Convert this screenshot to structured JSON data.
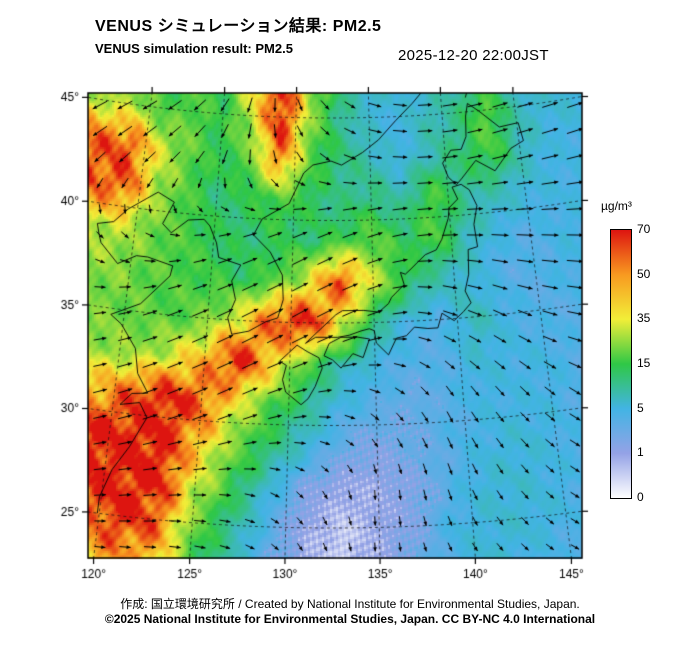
{
  "header": {
    "title_ja": "VENUS シミュレーション結果: PM2.5",
    "title_en": "VENUS simulation result: PM2.5",
    "timestamp": "2025-12-20 22:00JST"
  },
  "footer": {
    "credit": "作成: 国立環境研究所 / Created by National Institute for Environmental Studies, Japan.",
    "license": "©2025 National Institute for Environmental Studies, Japan. CC BY-NC 4.0 International"
  },
  "chart_data": {
    "type": "heatmap",
    "title": "VENUS シミュレーション結果: PM2.5",
    "subtitle": "VENUS simulation result: PM2.5",
    "variable": "PM2.5",
    "unit": "µg/m³",
    "valid_time": "2025-12-20 22:00JST",
    "axes": {
      "lon_ticks": [
        120,
        125,
        130,
        135,
        140,
        145
      ],
      "lon_tick_labels": [
        "120°",
        "125°",
        "130°",
        "135°",
        "140°",
        "145°"
      ],
      "lat_ticks": [
        25,
        30,
        35,
        40,
        45
      ],
      "lat_tick_labels": [
        "25°",
        "30°",
        "35°",
        "40°",
        "45°"
      ],
      "lon_range": [
        119.5,
        146.5
      ],
      "lat_range": [
        22.7,
        46.2
      ],
      "grid": "dashed"
    },
    "colorbar": {
      "unit": "µg/m³",
      "levels": [
        0,
        1,
        5,
        15,
        35,
        50,
        70
      ],
      "labels": [
        "0",
        "1",
        "5",
        "15",
        "35",
        "50",
        "70"
      ],
      "colors": [
        "#ffffff",
        "#94a2e6",
        "#42b4e4",
        "#2fc846",
        "#f2ee38",
        "#f89a20",
        "#dd1510"
      ],
      "orientation": "vertical",
      "position": "right"
    },
    "pm25_grid": {
      "lons": [
        119,
        121,
        123,
        125,
        127,
        129,
        131,
        133,
        135,
        137,
        139,
        141,
        143,
        145,
        147
      ],
      "lats": [
        47,
        45,
        43,
        41,
        39,
        37,
        35,
        33,
        31,
        29,
        27,
        25,
        23
      ],
      "values": [
        [
          22,
          14,
          18,
          14,
          40,
          70,
          28,
          12,
          8,
          6,
          6,
          8,
          10,
          6,
          6
        ],
        [
          28,
          16,
          20,
          14,
          30,
          70,
          24,
          10,
          6,
          5,
          8,
          10,
          20,
          8,
          6
        ],
        [
          60,
          32,
          20,
          14,
          20,
          55,
          18,
          12,
          8,
          5,
          8,
          12,
          18,
          8,
          5
        ],
        [
          60,
          28,
          18,
          12,
          14,
          18,
          14,
          10,
          12,
          8,
          18,
          10,
          8,
          6,
          5
        ],
        [
          30,
          22,
          18,
          14,
          12,
          14,
          12,
          16,
          20,
          14,
          18,
          8,
          5,
          4,
          5
        ],
        [
          24,
          20,
          18,
          16,
          14,
          18,
          32,
          62,
          30,
          14,
          8,
          6,
          4,
          4,
          5
        ],
        [
          22,
          20,
          18,
          22,
          35,
          62,
          70,
          35,
          10,
          5,
          4,
          8,
          5,
          4,
          4
        ],
        [
          26,
          25,
          32,
          45,
          70,
          40,
          18,
          8,
          5,
          4,
          4,
          6,
          5,
          5,
          4
        ],
        [
          45,
          60,
          70,
          60,
          35,
          18,
          10,
          5,
          4,
          3,
          4,
          5,
          5,
          5,
          4
        ],
        [
          70,
          70,
          70,
          45,
          22,
          12,
          6,
          3,
          2,
          3,
          4,
          5,
          6,
          5,
          4
        ],
        [
          70,
          70,
          70,
          32,
          15,
          6,
          2,
          1,
          1,
          2,
          4,
          6,
          6,
          5,
          4
        ],
        [
          55,
          70,
          60,
          22,
          10,
          4,
          1,
          0.5,
          1,
          2,
          5,
          6,
          6,
          5,
          4
        ],
        [
          40,
          50,
          45,
          16,
          8,
          3,
          1,
          0.5,
          1,
          3,
          5,
          6,
          5,
          4,
          4
        ]
      ]
    },
    "wind_grid": {
      "lons": [
        119,
        123,
        127,
        131,
        135,
        139,
        143,
        147
      ],
      "lats": [
        47,
        43,
        39,
        35,
        31,
        27,
        23
      ],
      "u": [
        [
          -6,
          -5,
          -2,
          2,
          4,
          5,
          6,
          6
        ],
        [
          -5,
          -4,
          0,
          3,
          5,
          6,
          6,
          7
        ],
        [
          2,
          3,
          5,
          6,
          6,
          6,
          7,
          7
        ],
        [
          4,
          6,
          7,
          7,
          6,
          5,
          5,
          6
        ],
        [
          5,
          6,
          6,
          5,
          3,
          2,
          3,
          4
        ],
        [
          4,
          5,
          4,
          2,
          0,
          1,
          2,
          3
        ],
        [
          3,
          4,
          3,
          1,
          0,
          1,
          2,
          2
        ]
      ],
      "v": [
        [
          -3,
          -4,
          -6,
          -4,
          -2,
          0,
          1,
          1
        ],
        [
          -5,
          -5,
          -6,
          -3,
          -1,
          0,
          1,
          1
        ],
        [
          -2,
          0,
          2,
          3,
          2,
          0,
          -1,
          -1
        ],
        [
          1,
          3,
          4,
          4,
          2,
          -2,
          -3,
          -2
        ],
        [
          2,
          3,
          3,
          1,
          -2,
          -4,
          -4,
          -3
        ],
        [
          1,
          1,
          0,
          -2,
          -3,
          -4,
          -3,
          -2
        ],
        [
          0,
          0,
          -1,
          -2,
          -2,
          -2,
          -2,
          -1
        ]
      ]
    },
    "coastlines": [
      [
        [
          130.4,
          31.2
        ],
        [
          129.8,
          31.6
        ],
        [
          129.6,
          32.2
        ],
        [
          129.8,
          32.9
        ],
        [
          129.4,
          33.1
        ],
        [
          129.9,
          33.5
        ],
        [
          130.4,
          33.9
        ],
        [
          131.0,
          33.6
        ],
        [
          131.7,
          33.3
        ],
        [
          131.9,
          32.8
        ],
        [
          131.5,
          31.9
        ],
        [
          131.1,
          31.3
        ],
        [
          130.7,
          31.0
        ],
        [
          130.4,
          31.2
        ]
      ],
      [
        [
          132.0,
          33.4
        ],
        [
          132.5,
          33.2
        ],
        [
          133.0,
          32.8
        ],
        [
          133.7,
          33.5
        ],
        [
          134.3,
          33.3
        ],
        [
          134.7,
          34.2
        ],
        [
          134.0,
          34.3
        ],
        [
          133.0,
          34.3
        ],
        [
          132.3,
          34.0
        ],
        [
          132.0,
          33.4
        ]
      ],
      [
        [
          130.9,
          34.0
        ],
        [
          131.5,
          34.3
        ],
        [
          132.2,
          34.3
        ],
        [
          132.8,
          34.3
        ],
        [
          133.5,
          34.4
        ],
        [
          134.2,
          34.6
        ],
        [
          134.7,
          34.7
        ],
        [
          135.0,
          34.6
        ],
        [
          135.1,
          34.0
        ],
        [
          135.8,
          33.4
        ],
        [
          136.3,
          34.2
        ],
        [
          136.9,
          34.3
        ],
        [
          137.4,
          34.7
        ],
        [
          138.2,
          34.6
        ],
        [
          138.8,
          34.6
        ],
        [
          139.1,
          35.3
        ],
        [
          139.8,
          34.9
        ],
        [
          140.4,
          35.3
        ],
        [
          140.9,
          35.7
        ],
        [
          140.6,
          36.3
        ],
        [
          140.9,
          37.1
        ],
        [
          141.0,
          38.3
        ],
        [
          141.6,
          38.4
        ],
        [
          141.5,
          39.5
        ],
        [
          141.8,
          40.4
        ],
        [
          141.4,
          41.2
        ],
        [
          140.9,
          41.5
        ],
        [
          140.3,
          41.4
        ],
        [
          140.6,
          40.8
        ],
        [
          140.0,
          40.4
        ],
        [
          139.9,
          39.9
        ],
        [
          139.4,
          38.9
        ],
        [
          139.0,
          38.4
        ],
        [
          138.3,
          38.2
        ],
        [
          137.3,
          37.5
        ],
        [
          137.0,
          37.3
        ],
        [
          136.7,
          37.4
        ],
        [
          136.9,
          36.8
        ],
        [
          136.1,
          36.2
        ],
        [
          135.9,
          35.9
        ],
        [
          135.3,
          35.5
        ],
        [
          134.4,
          35.6
        ],
        [
          133.1,
          35.6
        ],
        [
          132.7,
          35.4
        ],
        [
          131.4,
          34.4
        ],
        [
          130.9,
          34.0
        ]
      ],
      [
        [
          140.1,
          41.9
        ],
        [
          139.8,
          42.6
        ],
        [
          140.4,
          43.2
        ],
        [
          141.1,
          43.2
        ],
        [
          141.5,
          43.8
        ],
        [
          141.6,
          44.8
        ],
        [
          141.8,
          45.4
        ],
        [
          142.5,
          45.0
        ],
        [
          143.8,
          44.1
        ],
        [
          145.1,
          44.2
        ],
        [
          145.3,
          43.3
        ],
        [
          144.4,
          43.0
        ],
        [
          143.2,
          42.0
        ],
        [
          142.0,
          42.6
        ],
        [
          141.0,
          41.8
        ],
        [
          140.6,
          41.5
        ],
        [
          140.1,
          41.9
        ]
      ],
      [
        [
          124.3,
          39.8
        ],
        [
          124.7,
          39.5
        ],
        [
          125.2,
          38.7
        ],
        [
          125.4,
          38.0
        ],
        [
          126.8,
          37.7
        ],
        [
          126.3,
          36.9
        ],
        [
          126.6,
          36.0
        ],
        [
          126.2,
          35.1
        ],
        [
          126.5,
          34.3
        ],
        [
          127.5,
          34.5
        ],
        [
          128.5,
          35.0
        ],
        [
          129.2,
          35.2
        ],
        [
          129.5,
          36.1
        ],
        [
          129.4,
          37.3
        ],
        [
          128.6,
          38.4
        ],
        [
          127.5,
          39.2
        ],
        [
          128.0,
          40.0
        ],
        [
          129.7,
          40.8
        ],
        [
          130.6,
          42.3
        ]
      ],
      [
        [
          119.9,
          25.0
        ],
        [
          119.9,
          25.8
        ],
        [
          120.4,
          27.2
        ],
        [
          121.2,
          28.4
        ],
        [
          122.0,
          29.9
        ],
        [
          121.5,
          30.6
        ],
        [
          120.4,
          30.4
        ],
        [
          121.0,
          31.0
        ],
        [
          121.9,
          31.1
        ],
        [
          121.2,
          32.0
        ],
        [
          120.9,
          33.2
        ],
        [
          119.9,
          34.3
        ],
        [
          119.2,
          34.7
        ],
        [
          120.9,
          35.4
        ],
        [
          122.5,
          36.9
        ],
        [
          122.6,
          37.4
        ],
        [
          121.0,
          37.7
        ],
        [
          120.3,
          37.7
        ],
        [
          119.2,
          37.2
        ],
        [
          118.0,
          38.1
        ],
        [
          117.8,
          38.5
        ],
        [
          117.6,
          39.0
        ],
        [
          118.6,
          39.2
        ],
        [
          119.4,
          39.9
        ],
        [
          121.0,
          40.8
        ],
        [
          121.2,
          40.9
        ],
        [
          122.3,
          40.5
        ],
        [
          121.7,
          39.4
        ],
        [
          122.3,
          39.0
        ],
        [
          123.3,
          39.7
        ],
        [
          124.3,
          39.8
        ]
      ],
      [
        [
          130.6,
          42.3
        ],
        [
          131.2,
          42.7
        ],
        [
          132.4,
          42.9
        ],
        [
          133.1,
          42.7
        ],
        [
          134.5,
          43.3
        ],
        [
          135.6,
          43.9
        ],
        [
          136.8,
          44.8
        ],
        [
          138.0,
          45.6
        ],
        [
          138.8,
          46.2
        ]
      ],
      [
        [
          141.7,
          45.7
        ],
        [
          142.0,
          46.3
        ]
      ]
    ]
  }
}
